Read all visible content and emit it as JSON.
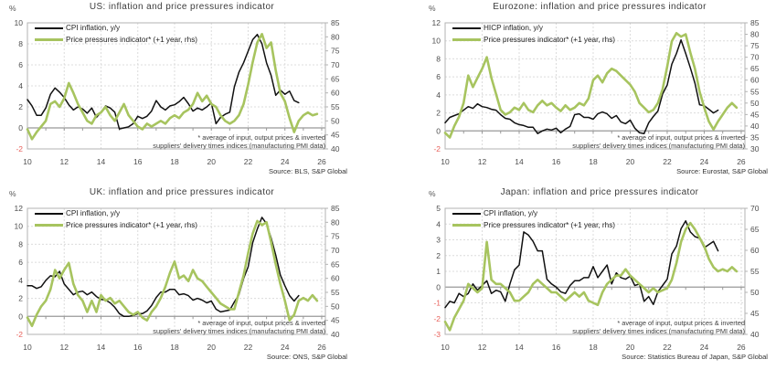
{
  "colors": {
    "cpi_line": "#111111",
    "pressure_line": "#a7c45f",
    "negative_tick": "#e8625c",
    "tick_text": "#4d4d4d",
    "grid": "#dcdcdc",
    "frame": "#b3b3b3",
    "zero_line": "#999999"
  },
  "footnote": {
    "line1": "* average of input, output prices & inverted",
    "line2": "suppliers' delivery times indices (manufacturing PMI data)"
  },
  "chart_data": [
    {
      "type": "line",
      "title": "US: inflation and price pressures indicator",
      "source": "Source: BLS, S&P Global",
      "legend": [
        {
          "label": "CPI inflation, y/y",
          "color": "#111111"
        },
        {
          "label": "Price pressures indicator* (+1 year, rhs)",
          "color": "#a7c45f"
        }
      ],
      "x_axis": {
        "min": 2010,
        "max": 2026.2,
        "ticks": [
          2010,
          2012,
          2014,
          2016,
          2018,
          2020,
          2022,
          2024,
          2026
        ],
        "tick_labels": [
          "10",
          "12",
          "14",
          "16",
          "18",
          "20",
          "22",
          "24",
          "26"
        ]
      },
      "left_axis": {
        "label": "%",
        "min": -2,
        "max": 10,
        "ticks": [
          -2,
          0,
          2,
          4,
          6,
          8,
          10
        ]
      },
      "right_axis": {
        "min": 40,
        "max": 85,
        "ticks": [
          40,
          45,
          50,
          55,
          60,
          65,
          70,
          75,
          80,
          85
        ]
      },
      "series": [
        {
          "name": "CPI inflation, y/y",
          "axis": "left",
          "color": "#111111",
          "width": 1.5,
          "x_start": 2010,
          "x_step": 0.25,
          "values": [
            2.7,
            2.1,
            1.2,
            1.2,
            1.9,
            3.2,
            3.8,
            3.4,
            2.9,
            2.2,
            1.7,
            2.0,
            1.8,
            1.4,
            1.9,
            1.0,
            1.5,
            2.1,
            1.9,
            1.5,
            -0.1,
            0.0,
            0.1,
            0.4,
            1.1,
            0.9,
            1.1,
            1.6,
            2.6,
            2.0,
            1.7,
            2.1,
            2.2,
            2.5,
            2.9,
            2.3,
            1.6,
            1.9,
            1.7,
            2.0,
            2.4,
            0.4,
            1.0,
            1.3,
            1.5,
            3.9,
            5.3,
            6.2,
            7.3,
            8.4,
            8.9,
            8.0,
            6.2,
            5.0,
            3.1,
            3.6,
            3.2,
            3.5,
            2.6,
            2.4
          ]
        },
        {
          "name": "Price pressures indicator* (+1 year, rhs)",
          "axis": "right",
          "color": "#a7c45f",
          "width": 2.6,
          "x_start": 2010,
          "x_step": 0.25,
          "values": [
            47,
            43.5,
            46,
            48,
            50,
            56,
            57,
            55,
            58,
            63.5,
            60,
            56,
            53,
            50,
            49,
            52,
            53,
            55,
            52,
            50,
            53,
            56,
            52,
            50,
            48,
            47,
            49,
            48,
            49,
            50,
            49,
            51,
            52,
            51,
            53,
            54,
            56,
            60,
            57,
            59,
            56,
            55,
            52,
            50,
            49,
            50,
            52,
            56,
            63,
            71,
            78,
            81,
            76,
            78,
            68,
            60,
            57,
            51,
            46,
            50,
            52,
            53,
            52,
            52.5
          ]
        }
      ]
    },
    {
      "type": "line",
      "title": "Eurozone: inflation and price pressures indicator",
      "source": "Source: Eurostat, S&P Global",
      "legend": [
        {
          "label": "HICP inflation, y/y",
          "color": "#111111"
        },
        {
          "label": "Price pressures indicator* (+1 year, rhs)",
          "color": "#a7c45f"
        }
      ],
      "x_axis": {
        "min": 2010,
        "max": 2026.2,
        "ticks": [
          2010,
          2012,
          2014,
          2016,
          2018,
          2020,
          2022,
          2024,
          2026
        ],
        "tick_labels": [
          "10",
          "12",
          "14",
          "16",
          "18",
          "20",
          "22",
          "24",
          "26"
        ]
      },
      "left_axis": {
        "label": "%",
        "min": -2,
        "max": 12,
        "ticks": [
          -2,
          0,
          2,
          4,
          6,
          8,
          10,
          12
        ]
      },
      "right_axis": {
        "min": 30,
        "max": 85,
        "ticks": [
          30,
          35,
          40,
          45,
          50,
          55,
          60,
          65,
          70,
          75,
          80,
          85
        ]
      },
      "series": [
        {
          "name": "HICP inflation, y/y",
          "axis": "left",
          "color": "#111111",
          "width": 1.5,
          "x_start": 2010,
          "x_step": 0.25,
          "values": [
            0.9,
            1.5,
            1.7,
            1.9,
            2.3,
            2.7,
            2.5,
            3.0,
            2.7,
            2.6,
            2.4,
            2.3,
            1.8,
            1.4,
            1.3,
            0.9,
            0.7,
            0.6,
            0.4,
            0.4,
            -0.3,
            0.0,
            0.2,
            0.1,
            0.3,
            -0.2,
            0.2,
            0.5,
            1.8,
            1.9,
            1.5,
            1.5,
            1.3,
            1.9,
            2.1,
            1.9,
            1.4,
            1.7,
            1.0,
            0.8,
            1.2,
            0.3,
            -0.2,
            -0.3,
            0.9,
            1.6,
            2.2,
            4.1,
            5.1,
            7.4,
            8.6,
            10.1,
            8.6,
            7.0,
            5.3,
            2.9,
            2.8,
            2.4,
            2.0,
            2.3
          ]
        },
        {
          "name": "Price pressures indicator* (+1 year, rhs)",
          "axis": "right",
          "color": "#a7c45f",
          "width": 2.6,
          "x_start": 2010,
          "x_step": 0.25,
          "values": [
            37,
            35,
            40,
            44,
            50,
            62,
            57,
            61,
            65,
            70,
            61,
            54,
            47,
            45,
            46,
            48,
            47,
            50,
            47,
            46,
            49,
            51,
            49,
            50,
            48,
            46.5,
            49,
            47,
            48,
            50,
            49,
            52,
            60,
            62,
            59,
            63,
            65,
            64,
            62,
            60,
            58,
            55,
            50,
            48,
            46,
            47,
            50,
            56,
            66,
            77,
            80.5,
            79,
            80,
            72,
            65,
            55,
            48,
            42,
            38.5,
            42,
            45,
            48,
            50,
            48
          ]
        }
      ]
    },
    {
      "type": "line",
      "title": "UK: inflation and price pressures indicator",
      "source": "Source: ONS, S&P Global",
      "legend": [
        {
          "label": "CPI inflation, y/y",
          "color": "#111111"
        },
        {
          "label": "Price pressures indicator* (+1 year, rhs)",
          "color": "#a7c45f"
        }
      ],
      "x_axis": {
        "min": 2010,
        "max": 2026.2,
        "ticks": [
          2010,
          2012,
          2014,
          2016,
          2018,
          2020,
          2022,
          2024,
          2026
        ],
        "tick_labels": [
          "10",
          "12",
          "14",
          "16",
          "18",
          "20",
          "22",
          "24",
          "26"
        ]
      },
      "left_axis": {
        "label": "%",
        "min": -2,
        "max": 12,
        "ticks": [
          -2,
          0,
          2,
          4,
          6,
          8,
          10,
          12
        ]
      },
      "right_axis": {
        "min": 40,
        "max": 85,
        "ticks": [
          40,
          45,
          50,
          55,
          60,
          65,
          70,
          75,
          80,
          85
        ]
      },
      "series": [
        {
          "name": "CPI inflation, y/y",
          "axis": "left",
          "color": "#111111",
          "width": 1.5,
          "x_start": 2010,
          "x_step": 0.25,
          "values": [
            3.4,
            3.4,
            3.1,
            3.3,
            4.0,
            4.5,
            4.4,
            5.0,
            3.6,
            3.0,
            2.4,
            2.7,
            2.8,
            2.4,
            2.7,
            2.2,
            1.9,
            1.8,
            1.5,
            1.0,
            0.3,
            0.0,
            0.0,
            0.1,
            0.3,
            0.3,
            0.6,
            1.2,
            2.1,
            2.7,
            2.7,
            3.0,
            3.0,
            2.4,
            2.5,
            2.3,
            1.8,
            2.0,
            1.8,
            1.5,
            1.7,
            0.8,
            0.5,
            0.6,
            0.7,
            1.6,
            2.4,
            4.2,
            5.5,
            8.2,
            9.7,
            11.0,
            10.3,
            8.7,
            6.8,
            4.6,
            3.4,
            2.3,
            1.7,
            2.3
          ]
        },
        {
          "name": "Price pressures indicator* (+1 year, rhs)",
          "axis": "right",
          "color": "#a7c45f",
          "width": 2.6,
          "x_start": 2010,
          "x_step": 0.25,
          "values": [
            46,
            43,
            47,
            50,
            52,
            56,
            63,
            60,
            63,
            65.5,
            58,
            54,
            52,
            48,
            52,
            48,
            54,
            52,
            53,
            51,
            52,
            50,
            48,
            47,
            48,
            46,
            45,
            48,
            50,
            53,
            57,
            62,
            66,
            60,
            61,
            59,
            63,
            60,
            59,
            57,
            55,
            53,
            51,
            50,
            49,
            49,
            55,
            61,
            69,
            76,
            80.5,
            79,
            80,
            73,
            65,
            58,
            52,
            45,
            47,
            52,
            53,
            52,
            54,
            52
          ]
        }
      ]
    },
    {
      "type": "line",
      "title": "Japan: inflation and price pressures indicator",
      "source": "Source: Statistics Bureau of Japan, S&P Global",
      "legend": [
        {
          "label": "CPI inflation, y/y",
          "color": "#111111"
        },
        {
          "label": "Price pressures indicator* (+1 year, rhs)",
          "color": "#a7c45f"
        }
      ],
      "x_axis": {
        "min": 2010,
        "max": 2026.2,
        "ticks": [
          2010,
          2012,
          2014,
          2016,
          2018,
          2020,
          2022,
          2024,
          2026
        ],
        "tick_labels": [
          "10",
          "12",
          "14",
          "16",
          "18",
          "20",
          "22",
          "24",
          "26"
        ]
      },
      "left_axis": {
        "label": "%",
        "min": -3,
        "max": 5,
        "ticks": [
          -3,
          -2,
          -1,
          0,
          1,
          2,
          3,
          4,
          5
        ]
      },
      "right_axis": {
        "min": 40,
        "max": 70,
        "ticks": [
          40,
          45,
          50,
          55,
          60,
          65,
          70
        ]
      },
      "series": [
        {
          "name": "CPI inflation, y/y",
          "axis": "left",
          "color": "#111111",
          "width": 1.5,
          "x_start": 2010,
          "x_step": 0.25,
          "values": [
            -1.3,
            -0.9,
            -1.0,
            -0.4,
            -0.6,
            -0.4,
            0.2,
            -0.2,
            0.1,
            0.4,
            -0.4,
            -0.2,
            -0.3,
            -0.9,
            0.2,
            1.1,
            1.4,
            3.5,
            3.3,
            2.9,
            2.3,
            2.3,
            0.5,
            0.2,
            0.0,
            -0.3,
            -0.4,
            0.1,
            0.4,
            0.4,
            0.6,
            0.6,
            1.3,
            0.6,
            1.0,
            1.4,
            0.2,
            0.9,
            0.6,
            0.5,
            0.7,
            0.1,
            0.2,
            -0.9,
            -0.6,
            -1.1,
            -0.3,
            0.1,
            0.5,
            2.1,
            2.6,
            3.7,
            4.2,
            3.5,
            3.2,
            3.1,
            2.5,
            2.7,
            2.9,
            2.3
          ]
        },
        {
          "name": "Price pressures indicator* (+1 year, rhs)",
          "axis": "right",
          "color": "#a7c45f",
          "width": 2.6,
          "x_start": 2010,
          "x_step": 0.25,
          "values": [
            43,
            41,
            44,
            46,
            48,
            52,
            51,
            50,
            51,
            62,
            53,
            52,
            52,
            51,
            50,
            48,
            48,
            49,
            50,
            52,
            53,
            52,
            51,
            50,
            50,
            49,
            48,
            49,
            50,
            49,
            50,
            48,
            47.5,
            47,
            50,
            52,
            53,
            54,
            54,
            55.5,
            54,
            53,
            52,
            51,
            50,
            51,
            50,
            50.5,
            51,
            53,
            57,
            62,
            65,
            66.5,
            65,
            63,
            61,
            58,
            56,
            55,
            55.5,
            55,
            56,
            55
          ]
        }
      ]
    }
  ]
}
